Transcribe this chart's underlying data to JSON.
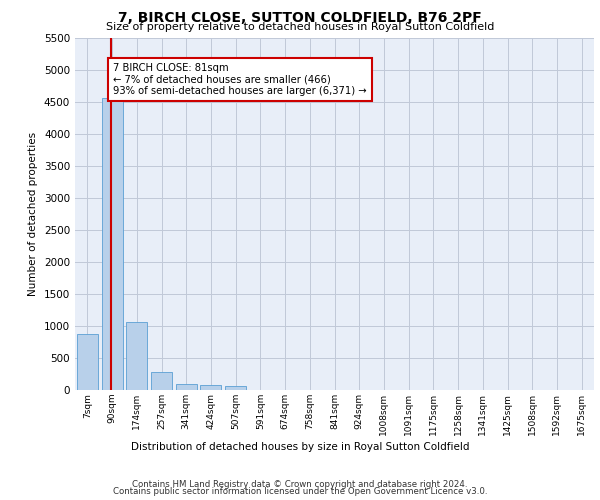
{
  "title": "7, BIRCH CLOSE, SUTTON COLDFIELD, B76 2PF",
  "subtitle": "Size of property relative to detached houses in Royal Sutton Coldfield",
  "xlabel": "Distribution of detached houses by size in Royal Sutton Coldfield",
  "ylabel": "Number of detached properties",
  "bar_color": "#b8d0ea",
  "bar_edge_color": "#5a9fd4",
  "annotation_box_text": "7 BIRCH CLOSE: 81sqm\n← 7% of detached houses are smaller (466)\n93% of semi-detached houses are larger (6,371) →",
  "annotation_box_color": "#ffffff",
  "annotation_box_edge_color": "#cc0000",
  "vline_x": 1,
  "vline_color": "#cc0000",
  "categories": [
    "7sqm",
    "90sqm",
    "174sqm",
    "257sqm",
    "341sqm",
    "424sqm",
    "507sqm",
    "591sqm",
    "674sqm",
    "758sqm",
    "841sqm",
    "924sqm",
    "1008sqm",
    "1091sqm",
    "1175sqm",
    "1258sqm",
    "1341sqm",
    "1425sqm",
    "1508sqm",
    "1592sqm",
    "1675sqm"
  ],
  "values": [
    880,
    4560,
    1060,
    285,
    90,
    80,
    55,
    0,
    0,
    0,
    0,
    0,
    0,
    0,
    0,
    0,
    0,
    0,
    0,
    0,
    0
  ],
  "ylim": [
    0,
    5500
  ],
  "yticks": [
    0,
    500,
    1000,
    1500,
    2000,
    2500,
    3000,
    3500,
    4000,
    4500,
    5000,
    5500
  ],
  "plot_bg_color": "#e8eef8",
  "footer_line1": "Contains HM Land Registry data © Crown copyright and database right 2024.",
  "footer_line2": "Contains public sector information licensed under the Open Government Licence v3.0."
}
